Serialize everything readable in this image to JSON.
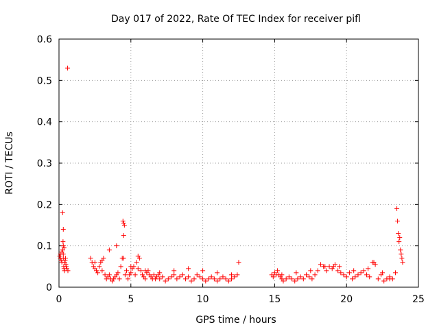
{
  "chart_data": {
    "type": "scatter",
    "title": "Day 017 of 2022, Rate Of TEC Index for receiver pifl",
    "xlabel": "GPS time / hours",
    "ylabel": "ROTI / TECUs",
    "xlim": [
      0,
      25
    ],
    "ylim": [
      0,
      0.6
    ],
    "x_ticks": [
      "0",
      "5",
      "10",
      "15",
      "20",
      "25"
    ],
    "y_ticks": [
      "0",
      "0.1",
      "0.2",
      "0.3",
      "0.4",
      "0.5",
      "0.6"
    ],
    "grid": true,
    "legend": "none",
    "marker": "plus",
    "color": "#ff0000",
    "series": [
      {
        "x": [
          0.05,
          0.1,
          0.15,
          0.2,
          0.25,
          0.28,
          0.3,
          0.33,
          0.35,
          0.38,
          0.4,
          0.43,
          0.45,
          0.48,
          0.5,
          0.55,
          0.6,
          0.62,
          0.25,
          0.3,
          0.3,
          0.35,
          2.2,
          2.3,
          2.4,
          2.5,
          2.6,
          2.7,
          2.8,
          2.9,
          3.0,
          3.1,
          3.2,
          3.3,
          3.4,
          3.5,
          3.6,
          3.7,
          3.8,
          3.9,
          4.0,
          4.1,
          4.2,
          4.3,
          4.4,
          4.45,
          4.5,
          4.55,
          4.5,
          4.6,
          4.7,
          4.8,
          4.9,
          5.0,
          5.1,
          5.2,
          5.3,
          5.4,
          5.5,
          5.6,
          5.7,
          5.8,
          5.9,
          6.0,
          6.1,
          6.2,
          6.3,
          6.4,
          6.5,
          6.6,
          6.7,
          6.8,
          6.9,
          7.0,
          7.2,
          7.4,
          7.6,
          7.8,
          8.0,
          8.2,
          8.4,
          8.6,
          8.8,
          9.0,
          9.2,
          9.4,
          9.6,
          9.8,
          10.0,
          10.2,
          10.4,
          10.6,
          10.8,
          11.0,
          11.2,
          11.4,
          11.6,
          11.8,
          12.0,
          12.2,
          12.4,
          12.5,
          14.8,
          14.9,
          15.0,
          15.1,
          15.2,
          15.3,
          15.4,
          15.5,
          15.6,
          15.8,
          16.0,
          16.2,
          16.4,
          16.6,
          16.8,
          17.0,
          17.2,
          17.4,
          17.6,
          17.8,
          18.0,
          18.2,
          18.4,
          18.6,
          18.8,
          19.0,
          19.1,
          19.2,
          19.4,
          19.6,
          19.8,
          20.0,
          20.2,
          20.4,
          20.6,
          20.8,
          21.0,
          21.2,
          21.4,
          21.6,
          21.8,
          21.9,
          22.0,
          22.2,
          22.4,
          22.6,
          22.8,
          23.0,
          23.2,
          23.4,
          23.5,
          23.55,
          23.6,
          23.65,
          23.7,
          23.75,
          23.8,
          23.85,
          23.9,
          0.1,
          0.2,
          0.3,
          2.5,
          3.0,
          3.5,
          4.0,
          4.5,
          5.0,
          5.5,
          6.0,
          7.0,
          8.0,
          9.0,
          10.0,
          11.0,
          12.0,
          15.5,
          16.5,
          17.5,
          18.5,
          19.5,
          20.5,
          21.5,
          22.5,
          23.0
        ],
        "y": [
          0.075,
          0.07,
          0.065,
          0.06,
          0.09,
          0.11,
          0.08,
          0.05,
          0.045,
          0.04,
          0.06,
          0.065,
          0.07,
          0.055,
          0.05,
          0.045,
          0.53,
          0.04,
          0.18,
          0.14,
          0.1,
          0.095,
          0.07,
          0.06,
          0.05,
          0.045,
          0.04,
          0.035,
          0.05,
          0.06,
          0.065,
          0.07,
          0.03,
          0.02,
          0.025,
          0.03,
          0.02,
          0.015,
          0.02,
          0.025,
          0.03,
          0.035,
          0.02,
          0.05,
          0.07,
          0.16,
          0.155,
          0.15,
          0.125,
          0.03,
          0.04,
          0.02,
          0.03,
          0.035,
          0.045,
          0.05,
          0.03,
          0.06,
          0.075,
          0.07,
          0.04,
          0.03,
          0.025,
          0.02,
          0.035,
          0.04,
          0.03,
          0.025,
          0.02,
          0.03,
          0.02,
          0.025,
          0.03,
          0.02,
          0.025,
          0.015,
          0.02,
          0.025,
          0.03,
          0.02,
          0.025,
          0.03,
          0.02,
          0.025,
          0.015,
          0.02,
          0.03,
          0.025,
          0.02,
          0.015,
          0.02,
          0.025,
          0.02,
          0.015,
          0.02,
          0.025,
          0.02,
          0.015,
          0.02,
          0.025,
          0.03,
          0.06,
          0.03,
          0.025,
          0.035,
          0.03,
          0.04,
          0.03,
          0.025,
          0.02,
          0.015,
          0.02,
          0.025,
          0.02,
          0.015,
          0.02,
          0.025,
          0.02,
          0.03,
          0.025,
          0.02,
          0.03,
          0.04,
          0.055,
          0.05,
          0.04,
          0.05,
          0.045,
          0.05,
          0.055,
          0.04,
          0.035,
          0.03,
          0.025,
          0.035,
          0.02,
          0.025,
          0.03,
          0.035,
          0.04,
          0.03,
          0.025,
          0.06,
          0.06,
          0.055,
          0.02,
          0.03,
          0.015,
          0.02,
          0.025,
          0.02,
          0.035,
          0.19,
          0.16,
          0.13,
          0.11,
          0.12,
          0.09,
          0.08,
          0.07,
          0.06,
          0.08,
          0.085,
          0.07,
          0.06,
          0.04,
          0.09,
          0.1,
          0.07,
          0.05,
          0.045,
          0.04,
          0.035,
          0.04,
          0.045,
          0.04,
          0.035,
          0.03,
          0.03,
          0.035,
          0.04,
          0.05,
          0.05,
          0.04,
          0.045,
          0.035,
          0.02
        ]
      }
    ]
  }
}
